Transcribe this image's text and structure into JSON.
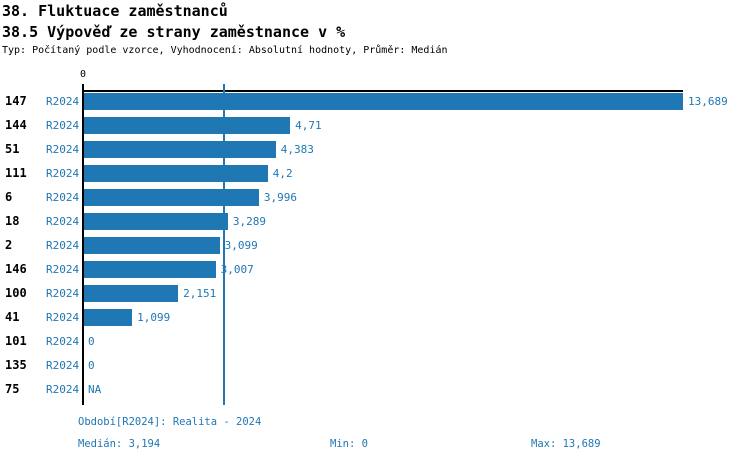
{
  "title": "38. Fluktuace zaměstnanců",
  "subtitle": "38.5 Výpověď ze strany zaměstnance v %",
  "meta": "Typ: Počítaný podle vzorce, Vyhodnocení: Absolutní hodnoty, Průměr: Medián",
  "colors": {
    "bar": "#1f77b4",
    "text_blue": "#1f77b4",
    "axis": "#000000"
  },
  "chart_data": {
    "type": "bar",
    "orientation": "horizontal",
    "categories": [
      "147",
      "144",
      "51",
      "111",
      "6",
      "18",
      "2",
      "146",
      "100",
      "41",
      "101",
      "135",
      "75"
    ],
    "series_label": "R2024",
    "values": [
      13.689,
      4.71,
      4.383,
      4.2,
      3.996,
      3.289,
      3.099,
      3.007,
      2.151,
      1.099,
      0,
      0,
      null
    ],
    "value_labels": [
      "13,689",
      "4,71",
      "4,383",
      "4,2",
      "3,996",
      "3,289",
      "3,099",
      "3,007",
      "2,151",
      "1,099",
      "0",
      "0",
      "NA"
    ],
    "xlim": [
      0,
      13.689
    ],
    "x_tick_label": "0",
    "median_line": 3.194,
    "grid": false,
    "legend": "none",
    "bar_color": "#1f77b4",
    "stats": {
      "median": 3.194,
      "min": 0,
      "max": 13.689
    }
  },
  "footer": {
    "period": "Období[R2024]: Realita - 2024",
    "median": "Medián: 3,194",
    "min": "Min: 0",
    "max": "Max: 13,689"
  }
}
